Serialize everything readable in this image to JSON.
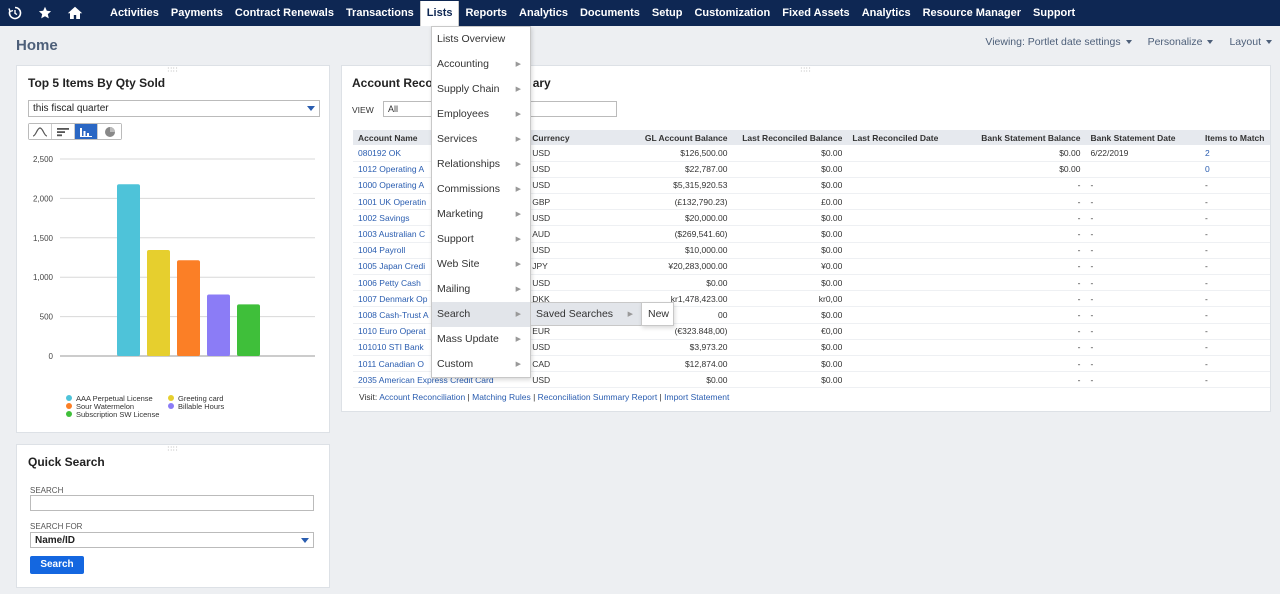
{
  "nav": {
    "icons": [
      "history-icon",
      "star-icon",
      "home-icon"
    ],
    "links": [
      "Activities",
      "Payments",
      "Contract Renewals",
      "Transactions",
      "Lists",
      "Reports",
      "Analytics",
      "Documents",
      "Setup",
      "Customization",
      "Fixed Assets",
      "Analytics",
      "Resource Manager",
      "Support"
    ],
    "active": "Lists"
  },
  "header": {
    "title": "Home",
    "viewing": "Viewing: Portlet date settings",
    "personalize": "Personalize",
    "layout": "Layout"
  },
  "top_items": {
    "title": "Top 5 Items By Qty Sold",
    "period": "this fiscal quarter",
    "chart_type_icons": [
      "line-chart-icon",
      "horizontal-bar-icon",
      "column-chart-icon",
      "pie-chart-icon"
    ]
  },
  "chart_data": {
    "type": "bar",
    "categories": [
      "AAA Perpetual License",
      "Greeting card",
      "Sour Watermelon",
      "Billable Hours",
      "Subscription SW License"
    ],
    "values": [
      2180,
      1345,
      1215,
      780,
      655
    ],
    "colors": [
      "#4ec3d9",
      "#e6cf2e",
      "#fb7f26",
      "#8b7cf6",
      "#3fbf3a"
    ],
    "yticks": [
      "2,500",
      "2,000",
      "1,500",
      "1,000",
      "500",
      "0"
    ],
    "ylim": [
      0,
      2500
    ],
    "grid": true,
    "legend": "bottom"
  },
  "quick_search": {
    "title": "Quick Search",
    "search_label": "SEARCH",
    "search_for_label": "SEARCH FOR",
    "search_for_value": "Name/ID",
    "button": "Search"
  },
  "recon": {
    "title_prefix": "Account Reco",
    "title_suffix": "ary",
    "view_label": "VIEW",
    "view_value": "All",
    "columns": [
      "Account Name",
      "Currency",
      "GL Account Balance",
      "Last Reconciled Balance",
      "Last Reconciled Date",
      "Bank Statement Balance",
      "Bank Statement Date",
      "Items to Match"
    ],
    "rows": [
      [
        "080192 OK",
        "USD",
        "$126,500.00",
        "$0.00",
        "",
        "$0.00",
        "6/22/2019",
        "2"
      ],
      [
        "1012 Operating A",
        "USD",
        "$22,787.00",
        "$0.00",
        "",
        "$0.00",
        "",
        "0"
      ],
      [
        "1000 Operating A",
        "USD",
        "$5,315,920.53",
        "$0.00",
        "",
        "-",
        "-",
        "-"
      ],
      [
        "1001 UK Operatin",
        "GBP",
        "(£132,790.23)",
        "£0.00",
        "",
        "-",
        "-",
        "-"
      ],
      [
        "1002 Savings",
        "USD",
        "$20,000.00",
        "$0.00",
        "",
        "-",
        "-",
        "-"
      ],
      [
        "1003 Australian C",
        "AUD",
        "($269,541.60)",
        "$0.00",
        "",
        "-",
        "-",
        "-"
      ],
      [
        "1004 Payroll",
        "USD",
        "$10,000.00",
        "$0.00",
        "",
        "-",
        "-",
        "-"
      ],
      [
        "1005 Japan Credi",
        "JPY",
        "¥20,283,000.00",
        "¥0.00",
        "",
        "-",
        "-",
        "-"
      ],
      [
        "1006 Petty Cash",
        "USD",
        "$0.00",
        "$0.00",
        "",
        "-",
        "-",
        "-"
      ],
      [
        "1007 Denmark Op",
        "DKK",
        "kr1,478,423.00",
        "kr0,00",
        "",
        "-",
        "-",
        "-"
      ],
      [
        "1008 Cash-Trust A",
        "",
        "00",
        "$0.00",
        "",
        "-",
        "-",
        "-"
      ],
      [
        "1010 Euro Operat",
        "EUR",
        "(€323.848,00)",
        "€0,00",
        "",
        "-",
        "-",
        "-"
      ],
      [
        "101010 STI Bank",
        "USD",
        "$3,973.20",
        "$0.00",
        "",
        "-",
        "-",
        "-"
      ],
      [
        "1011 Canadian O",
        "CAD",
        "$12,874.00",
        "$0.00",
        "",
        "-",
        "-",
        "-"
      ],
      [
        "2035 American Express Credit Card",
        "USD",
        "$0.00",
        "$0.00",
        "",
        "-",
        "-",
        "-"
      ]
    ],
    "footer_prefix": "Visit:",
    "footer_links": [
      "Account Reconciliation",
      "Matching Rules",
      "Reconciliation Summary Report",
      "Import Statement"
    ]
  },
  "lists_menu": {
    "items": [
      {
        "label": "Lists Overview",
        "sub": false
      },
      {
        "label": "Accounting",
        "sub": true
      },
      {
        "label": "Supply Chain",
        "sub": true
      },
      {
        "label": "Employees",
        "sub": true
      },
      {
        "label": "Services",
        "sub": true
      },
      {
        "label": "Relationships",
        "sub": true
      },
      {
        "label": "Commissions",
        "sub": true
      },
      {
        "label": "Marketing",
        "sub": true
      },
      {
        "label": "Support",
        "sub": true
      },
      {
        "label": "Web Site",
        "sub": true
      },
      {
        "label": "Mailing",
        "sub": true
      },
      {
        "label": "Search",
        "sub": true
      },
      {
        "label": "Mass Update",
        "sub": true
      },
      {
        "label": "Custom",
        "sub": true
      }
    ],
    "highlighted": "Search",
    "submenu": "Saved Searches",
    "submenu2": "New"
  }
}
